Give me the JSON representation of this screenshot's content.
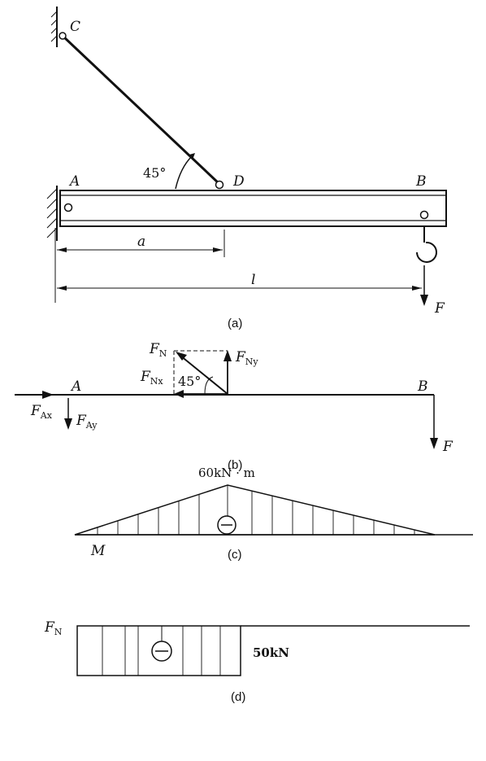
{
  "figure_a": {
    "point_c": "C",
    "point_a": "A",
    "point_d": "D",
    "point_b": "B",
    "angle": "45°",
    "dim_a": "a",
    "dim_l": "l",
    "force_f": "F",
    "caption": "(a)"
  },
  "figure_b": {
    "fn": "F",
    "fn_sub": "N",
    "fny": "F",
    "fny_sub": "Ny",
    "fnx": "F",
    "fnx_sub": "Nx",
    "angle": "45°",
    "point_a": "A",
    "point_b": "B",
    "fax": "F",
    "fax_sub": "Ax",
    "fay": "F",
    "fay_sub": "Ay",
    "force_f": "F",
    "caption": "(b)"
  },
  "figure_c": {
    "peak_value": "60kN · m",
    "sign": "⊖",
    "label": "M",
    "caption": "(c)"
  },
  "figure_d": {
    "label": "F",
    "label_sub": "N",
    "sign": "⊖",
    "value": "50kN",
    "caption": "(d)"
  }
}
